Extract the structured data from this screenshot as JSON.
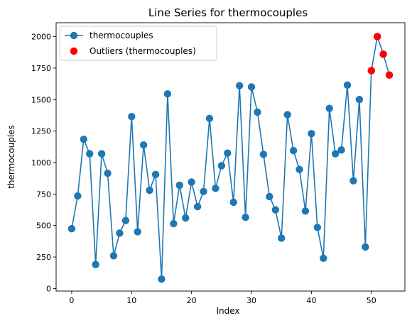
{
  "chart_data": {
    "type": "line",
    "title": "Line Series for thermocouples",
    "xlabel": "Index",
    "ylabel": "thermocouples",
    "xlim": [
      -2.6,
      55.6
    ],
    "ylim": [
      -20,
      2110
    ],
    "xticks": [
      0,
      10,
      20,
      30,
      40,
      50
    ],
    "yticks": [
      0,
      250,
      500,
      750,
      1000,
      1250,
      1500,
      1750,
      2000
    ],
    "legend_position": "top-left",
    "grid": false,
    "series": [
      {
        "name": "thermocouples",
        "color": "#1f77b4",
        "x": [
          0,
          1,
          2,
          3,
          4,
          5,
          6,
          7,
          8,
          9,
          10,
          11,
          12,
          13,
          14,
          15,
          16,
          17,
          18,
          19,
          20,
          21,
          22,
          23,
          24,
          25,
          26,
          27,
          28,
          29,
          30,
          31,
          32,
          33,
          34,
          35,
          36,
          37,
          38,
          39,
          40,
          41,
          42,
          43,
          44,
          45,
          46,
          47,
          48,
          49,
          50,
          51,
          52,
          53
        ],
        "values": [
          475,
          735,
          1185,
          1070,
          190,
          1070,
          915,
          260,
          440,
          540,
          1365,
          450,
          1140,
          780,
          905,
          75,
          1545,
          515,
          820,
          560,
          845,
          650,
          770,
          1350,
          795,
          975,
          1075,
          685,
          1610,
          565,
          1600,
          1400,
          1065,
          730,
          625,
          400,
          1380,
          1095,
          945,
          615,
          1230,
          485,
          240,
          1430,
          1070,
          1100,
          1615,
          855,
          1500,
          330,
          1730,
          2000,
          1860,
          1695
        ]
      },
      {
        "name": "Outliers (thermocouples)",
        "color": "#ff0000",
        "x": [
          50,
          51,
          52,
          53
        ],
        "values": [
          1730,
          2000,
          1860,
          1695
        ]
      }
    ]
  }
}
